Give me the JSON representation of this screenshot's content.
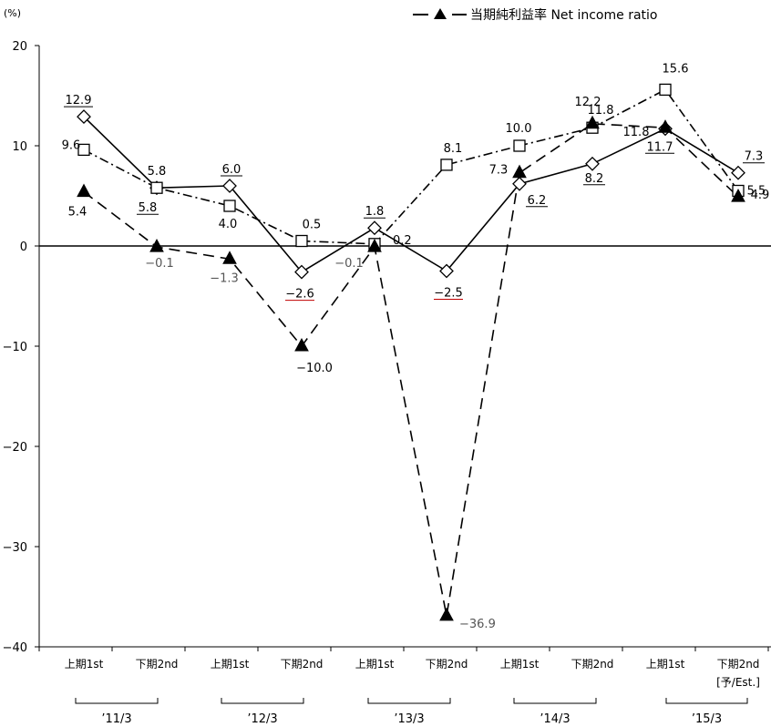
{
  "chart_data": {
    "type": "line",
    "unit_label": "(%)",
    "ylim": [
      -40,
      20
    ],
    "y_ticks": [
      "20",
      "10",
      "0",
      "-10",
      "-20",
      "-30",
      "-40"
    ],
    "y_tick_values": [
      20,
      10,
      0,
      -10,
      -20,
      -30,
      -40
    ],
    "categories": [
      "上期1st",
      "下期2nd",
      "上期1st",
      "下期2nd",
      "上期1st",
      "下期2nd",
      "上期1st",
      "下期2nd",
      "上期1st",
      "下期2nd"
    ],
    "category_note": "[予/Est.]",
    "periods": [
      "'11/3",
      "'12/3",
      "'13/3",
      "'14/3",
      "'15/3"
    ],
    "legend_label": "当期純利益率 Net income ratio",
    "series": [
      {
        "name": "",
        "marker": "diamond",
        "dash": "solid",
        "values": [
          12.9,
          5.8,
          6.0,
          -2.6,
          1.8,
          -2.5,
          6.2,
          8.2,
          11.7,
          7.3
        ],
        "labels": [
          "12.9",
          "5.8",
          "6.0",
          "−2.6",
          "1.8",
          "−2.5",
          "6.2",
          "8.2",
          "11.7",
          "7.3"
        ]
      },
      {
        "name": "",
        "marker": "square",
        "dash": "dashdot",
        "values": [
          9.6,
          5.8,
          4.0,
          0.5,
          0.2,
          8.1,
          10.0,
          11.8,
          15.6,
          5.5
        ],
        "labels": [
          "9.6",
          "5.8",
          "4.0",
          "0.5",
          "0.2",
          "8.1",
          "10.0",
          "11.8",
          "15.6",
          "5.5"
        ]
      },
      {
        "name": "当期純利益率 Net income ratio",
        "marker": "triangle",
        "dash": "dashed",
        "values": [
          5.4,
          -0.1,
          -1.3,
          -10.0,
          -0.1,
          -36.9,
          7.3,
          12.2,
          11.8,
          4.9
        ],
        "labels": [
          "5.4",
          "−0.1",
          "−1.3",
          "−10.0",
          "−0.1",
          "−36.9",
          "7.3",
          "12.2",
          "11.8",
          "4.9"
        ]
      }
    ],
    "grid": false,
    "legend_position": "top-right"
  }
}
